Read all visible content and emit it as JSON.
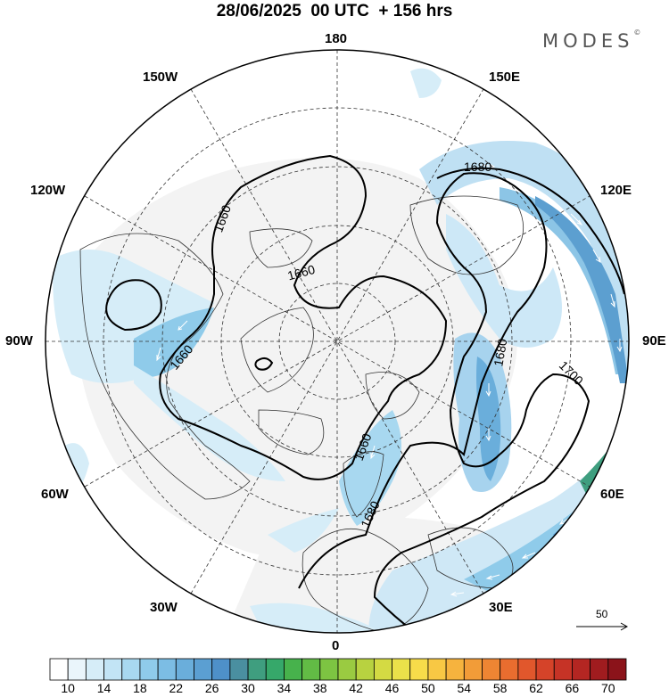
{
  "title": "28/06/2025  00 UTC  + 156 hrs",
  "brand": "MODES",
  "brand_mark": "©",
  "map": {
    "projection": "north polar stereographic",
    "lon_labels": {
      "top": "180",
      "bottom": "0",
      "left": "90W",
      "right": "90E",
      "nw_150": "150W",
      "nw_120": "120W",
      "sw_60": "60W",
      "sw_30": "30W",
      "ne_150": "150E",
      "ne_120": "120E",
      "se_60": "60E",
      "se_30": "30E"
    },
    "contour_labels": [
      "1660",
      "1660",
      "1660",
      "1660",
      "1680",
      "1680",
      "1680",
      "1700"
    ]
  },
  "reference_vector": {
    "value": "50"
  },
  "colorbar": {
    "bins": 32,
    "tick_labels": [
      "10",
      "14",
      "18",
      "22",
      "26",
      "30",
      "34",
      "38",
      "42",
      "46",
      "50",
      "54",
      "58",
      "62",
      "66",
      "70"
    ],
    "colors": [
      "#ffffff",
      "#eaf5fb",
      "#d6edf8",
      "#c2e4f5",
      "#a8d8f0",
      "#8fcbea",
      "#7cbde4",
      "#6aaedb",
      "#5b9fd2",
      "#4e90c9",
      "#4a8fa0",
      "#3f9e7f",
      "#36a86a",
      "#47b24c",
      "#62bb45",
      "#7dc442",
      "#9acb41",
      "#b8d240",
      "#d4da43",
      "#ebe14a",
      "#f7dc4a",
      "#f8c844",
      "#f6b33e",
      "#f29c38",
      "#ee8533",
      "#e96d2f",
      "#e1572c",
      "#d54329",
      "#c63326",
      "#b42622",
      "#a01c1f",
      "#8b131a"
    ]
  }
}
